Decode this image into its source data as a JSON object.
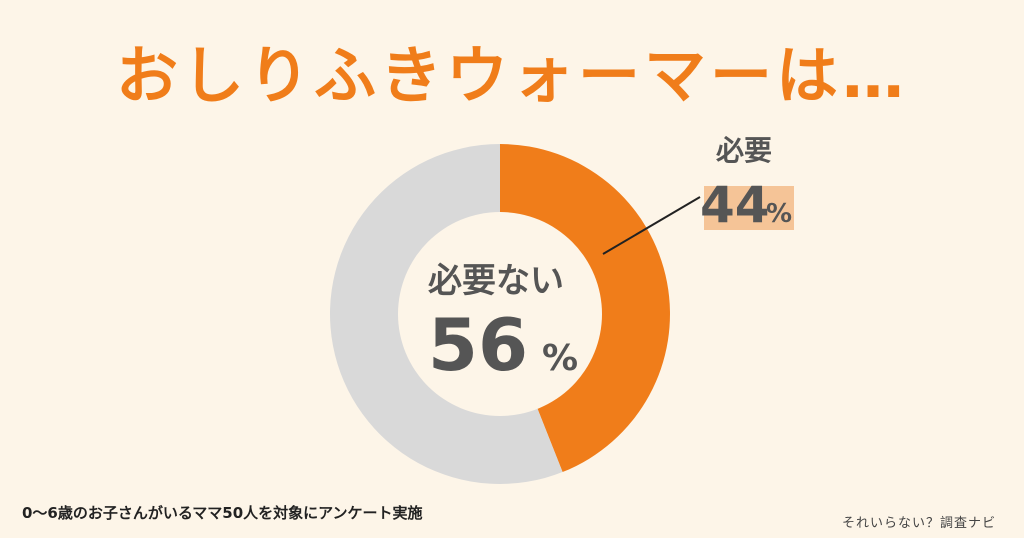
{
  "title": "おしりふきウォーマーは…",
  "footnote": "0〜6歳のお子さんがいるママ50人を対象にアンケート実施",
  "brand": "それいらない？調査ナビ",
  "colors": {
    "background": "#fdf5e8",
    "accent": "#f07d1a",
    "gray": "#d9d9d9",
    "center": "#fdf5e8",
    "highlight": "#f5c497",
    "text": "#555555"
  },
  "chart_data": {
    "type": "pie",
    "title": "おしりふきウォーマーは…",
    "slices": [
      {
        "label": "必要",
        "value": 44,
        "display": "44",
        "unit": "%",
        "color": "#f07d1a"
      },
      {
        "label": "必要ない",
        "value": 56,
        "display": "56",
        "unit": "%",
        "color": "#d9d9d9"
      }
    ]
  }
}
